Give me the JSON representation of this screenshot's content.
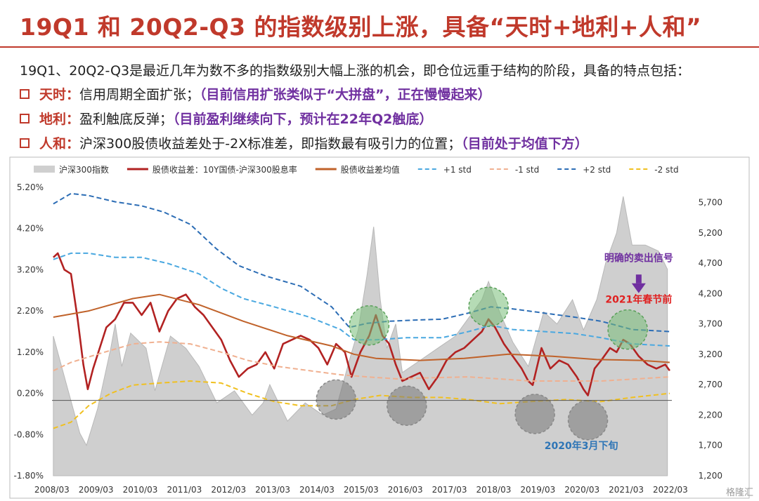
{
  "header": {
    "title": "19Q1 和 20Q2-Q3 的指数级别上涨，具备“天时+地利+人和”",
    "intro": "19Q1、20Q2-Q3是最近几年为数不多的指数级别大幅上涨的机会，即仓位远重于结构的阶段，具备的特点包括："
  },
  "bullets": [
    {
      "key": "天时：",
      "text": "信用周期全面扩张；",
      "note": "（目前信用扩张类似于“大拼盘”，正在慢慢起来）"
    },
    {
      "key": "地利：",
      "text": "盈利触底反弹；",
      "note": "（目前盈利继续向下，预计在22年Q2触底）"
    },
    {
      "key": "人和：",
      "text": "沪深300股债收益差处于-2X标准差，即指数最有吸引力的位置；",
      "note": "（目前处于均值下方）"
    }
  ],
  "chart_data": {
    "type": "line",
    "x_ticks": [
      "2008/03",
      "2009/03",
      "2010/03",
      "2011/03",
      "2012/03",
      "2013/03",
      "2014/03",
      "2015/03",
      "2016/03",
      "2017/03",
      "2018/03",
      "2019/03",
      "2020/03",
      "2021/03",
      "2022/03"
    ],
    "y_left": {
      "ticks": [
        "-1.80%",
        "-0.80%",
        "0.20%",
        "1.20%",
        "2.20%",
        "3.20%",
        "4.20%",
        "5.20%"
      ],
      "range": [
        -1.8,
        5.2
      ]
    },
    "y_right": {
      "ticks": [
        "1,200",
        "1,700",
        "2,200",
        "2,700",
        "3,200",
        "3,700",
        "4,200",
        "4,700",
        "5,200",
        "5,700"
      ],
      "range": [
        1200,
        5950
      ]
    },
    "x_range": [
      2008.17,
      2022.2
    ],
    "legend": {
      "position": "top",
      "items": [
        {
          "label": "沪深300指数",
          "color": "#cfcfcf",
          "style": "area"
        },
        {
          "label": "股债收益差：10Y国债-沪深300股息率",
          "color": "#b22222",
          "style": "solid"
        },
        {
          "label": "股债收益差均值",
          "color": "#c0622a",
          "style": "solid"
        },
        {
          "label": "+1 std",
          "color": "#4aa8e0",
          "style": "dash"
        },
        {
          "label": "-1 std",
          "color": "#f0b090",
          "style": "dash"
        },
        {
          "label": "+2 std",
          "color": "#2c6db5",
          "style": "dash"
        },
        {
          "label": "-2 std",
          "color": "#f0c020",
          "style": "dash"
        }
      ]
    },
    "series": [
      {
        "name": "沪深300指数",
        "axis": "right",
        "points": [
          [
            2008.2,
            3500
          ],
          [
            2008.5,
            2700
          ],
          [
            2008.8,
            1900
          ],
          [
            2008.95,
            1700
          ],
          [
            2009.2,
            2300
          ],
          [
            2009.5,
            3300
          ],
          [
            2009.6,
            3700
          ],
          [
            2009.75,
            3000
          ],
          [
            2009.95,
            3550
          ],
          [
            2010.3,
            3300
          ],
          [
            2010.5,
            2600
          ],
          [
            2010.85,
            3500
          ],
          [
            2011.2,
            3300
          ],
          [
            2011.5,
            3000
          ],
          [
            2011.9,
            2400
          ],
          [
            2012.3,
            2600
          ],
          [
            2012.7,
            2200
          ],
          [
            2012.95,
            2400
          ],
          [
            2013.1,
            2700
          ],
          [
            2013.5,
            2100
          ],
          [
            2013.9,
            2400
          ],
          [
            2014.3,
            2200
          ],
          [
            2014.6,
            2300
          ],
          [
            2014.9,
            3100
          ],
          [
            2015.1,
            3600
          ],
          [
            2015.3,
            4500
          ],
          [
            2015.45,
            5300
          ],
          [
            2015.6,
            4100
          ],
          [
            2015.75,
            3300
          ],
          [
            2015.95,
            3700
          ],
          [
            2016.1,
            2900
          ],
          [
            2016.5,
            3100
          ],
          [
            2016.9,
            3300
          ],
          [
            2017.3,
            3500
          ],
          [
            2017.9,
            4100
          ],
          [
            2018.05,
            4400
          ],
          [
            2018.3,
            3900
          ],
          [
            2018.6,
            3400
          ],
          [
            2018.95,
            3000
          ],
          [
            2019.3,
            3900
          ],
          [
            2019.6,
            3700
          ],
          [
            2019.95,
            4100
          ],
          [
            2020.2,
            3600
          ],
          [
            2020.5,
            4100
          ],
          [
            2020.7,
            4700
          ],
          [
            2020.95,
            5200
          ],
          [
            2021.1,
            5800
          ],
          [
            2021.3,
            5000
          ],
          [
            2021.6,
            5000
          ],
          [
            2021.9,
            4900
          ],
          [
            2022.1,
            4600
          ]
        ]
      },
      {
        "name": "股债收益差：10Y国债-沪深300股息率",
        "axis": "left",
        "points": [
          [
            2008.2,
            3.5
          ],
          [
            2008.3,
            3.6
          ],
          [
            2008.45,
            3.2
          ],
          [
            2008.6,
            3.1
          ],
          [
            2008.75,
            2.0
          ],
          [
            2008.88,
            0.9
          ],
          [
            2008.98,
            0.3
          ],
          [
            2009.1,
            0.8
          ],
          [
            2009.25,
            1.3
          ],
          [
            2009.4,
            1.8
          ],
          [
            2009.6,
            2.0
          ],
          [
            2009.8,
            2.4
          ],
          [
            2010.0,
            2.4
          ],
          [
            2010.2,
            2.1
          ],
          [
            2010.4,
            2.4
          ],
          [
            2010.6,
            1.7
          ],
          [
            2010.8,
            2.2
          ],
          [
            2011.0,
            2.5
          ],
          [
            2011.2,
            2.6
          ],
          [
            2011.4,
            2.3
          ],
          [
            2011.6,
            2.1
          ],
          [
            2011.8,
            1.8
          ],
          [
            2012.0,
            1.5
          ],
          [
            2012.2,
            1.0
          ],
          [
            2012.4,
            0.6
          ],
          [
            2012.6,
            0.8
          ],
          [
            2012.8,
            0.9
          ],
          [
            2013.0,
            1.2
          ],
          [
            2013.2,
            0.8
          ],
          [
            2013.4,
            1.4
          ],
          [
            2013.6,
            1.5
          ],
          [
            2013.8,
            1.6
          ],
          [
            2014.0,
            1.5
          ],
          [
            2014.2,
            1.3
          ],
          [
            2014.4,
            0.9
          ],
          [
            2014.6,
            1.4
          ],
          [
            2014.8,
            1.2
          ],
          [
            2014.95,
            0.6
          ],
          [
            2015.15,
            1.2
          ],
          [
            2015.35,
            1.6
          ],
          [
            2015.5,
            2.1
          ],
          [
            2015.65,
            1.6
          ],
          [
            2015.8,
            1.4
          ],
          [
            2015.95,
            0.9
          ],
          [
            2016.1,
            0.5
          ],
          [
            2016.3,
            0.6
          ],
          [
            2016.5,
            0.7
          ],
          [
            2016.7,
            0.3
          ],
          [
            2016.9,
            0.6
          ],
          [
            2017.1,
            1.0
          ],
          [
            2017.3,
            1.2
          ],
          [
            2017.5,
            1.3
          ],
          [
            2017.7,
            1.5
          ],
          [
            2017.9,
            1.7
          ],
          [
            2018.05,
            2.0
          ],
          [
            2018.2,
            1.8
          ],
          [
            2018.4,
            1.4
          ],
          [
            2018.6,
            1.1
          ],
          [
            2018.8,
            0.8
          ],
          [
            2018.95,
            0.5
          ],
          [
            2019.05,
            0.4
          ],
          [
            2019.25,
            1.3
          ],
          [
            2019.45,
            0.8
          ],
          [
            2019.65,
            1.0
          ],
          [
            2019.85,
            0.9
          ],
          [
            2020.05,
            0.6
          ],
          [
            2020.2,
            0.3
          ],
          [
            2020.3,
            0.15
          ],
          [
            2020.45,
            0.8
          ],
          [
            2020.6,
            1.0
          ],
          [
            2020.8,
            1.3
          ],
          [
            2020.95,
            1.2
          ],
          [
            2021.1,
            1.5
          ],
          [
            2021.25,
            1.4
          ],
          [
            2021.45,
            1.1
          ],
          [
            2021.65,
            0.9
          ],
          [
            2021.85,
            0.8
          ],
          [
            2022.05,
            0.9
          ],
          [
            2022.15,
            0.75
          ]
        ]
      },
      {
        "name": "股债收益差均值",
        "axis": "left",
        "points": [
          [
            2008.2,
            2.05
          ],
          [
            2009.0,
            2.2
          ],
          [
            2010.0,
            2.5
          ],
          [
            2010.6,
            2.6
          ],
          [
            2011.5,
            2.35
          ],
          [
            2012.5,
            1.95
          ],
          [
            2013.5,
            1.6
          ],
          [
            2014.5,
            1.35
          ],
          [
            2015.0,
            1.15
          ],
          [
            2015.5,
            1.05
          ],
          [
            2016.5,
            1.0
          ],
          [
            2017.5,
            1.05
          ],
          [
            2018.5,
            1.15
          ],
          [
            2019.5,
            1.1
          ],
          [
            2020.5,
            1.02
          ],
          [
            2021.5,
            1.0
          ],
          [
            2022.15,
            0.95
          ]
        ]
      },
      {
        "name": "+1 std",
        "axis": "left",
        "points": [
          [
            2008.2,
            3.45
          ],
          [
            2008.6,
            3.6
          ],
          [
            2009.0,
            3.6
          ],
          [
            2009.6,
            3.5
          ],
          [
            2010.2,
            3.5
          ],
          [
            2010.8,
            3.35
          ],
          [
            2011.5,
            3.1
          ],
          [
            2012.0,
            2.75
          ],
          [
            2012.5,
            2.5
          ],
          [
            2013.2,
            2.3
          ],
          [
            2014.0,
            2.05
          ],
          [
            2014.7,
            1.75
          ],
          [
            2015.0,
            1.5
          ],
          [
            2015.5,
            1.5
          ],
          [
            2016.2,
            1.55
          ],
          [
            2017.0,
            1.55
          ],
          [
            2017.6,
            1.7
          ],
          [
            2018.1,
            1.85
          ],
          [
            2018.6,
            1.75
          ],
          [
            2019.3,
            1.7
          ],
          [
            2020.0,
            1.65
          ],
          [
            2020.6,
            1.55
          ],
          [
            2021.3,
            1.4
          ],
          [
            2022.15,
            1.35
          ]
        ]
      },
      {
        "name": "-1 std",
        "axis": "left",
        "points": [
          [
            2008.2,
            0.75
          ],
          [
            2008.6,
            0.95
          ],
          [
            2009.2,
            1.15
          ],
          [
            2010.0,
            1.4
          ],
          [
            2010.6,
            1.45
          ],
          [
            2011.3,
            1.4
          ],
          [
            2012.0,
            1.2
          ],
          [
            2012.6,
            1.0
          ],
          [
            2013.3,
            0.85
          ],
          [
            2014.0,
            0.75
          ],
          [
            2014.7,
            0.65
          ],
          [
            2015.3,
            0.6
          ],
          [
            2016.0,
            0.55
          ],
          [
            2016.8,
            0.58
          ],
          [
            2017.6,
            0.6
          ],
          [
            2018.3,
            0.55
          ],
          [
            2019.0,
            0.5
          ],
          [
            2019.8,
            0.5
          ],
          [
            2020.6,
            0.5
          ],
          [
            2021.4,
            0.55
          ],
          [
            2022.15,
            0.6
          ]
        ]
      },
      {
        "name": "+2 std",
        "axis": "left",
        "points": [
          [
            2008.2,
            4.8
          ],
          [
            2008.6,
            5.05
          ],
          [
            2009.0,
            5.0
          ],
          [
            2009.6,
            4.85
          ],
          [
            2010.2,
            4.75
          ],
          [
            2010.7,
            4.6
          ],
          [
            2011.3,
            4.3
          ],
          [
            2011.9,
            3.7
          ],
          [
            2012.4,
            3.3
          ],
          [
            2013.0,
            3.05
          ],
          [
            2013.8,
            2.8
          ],
          [
            2014.5,
            2.3
          ],
          [
            2014.9,
            1.8
          ],
          [
            2015.3,
            1.9
          ],
          [
            2015.8,
            1.95
          ],
          [
            2016.4,
            1.98
          ],
          [
            2017.0,
            2.0
          ],
          [
            2017.6,
            2.15
          ],
          [
            2018.1,
            2.3
          ],
          [
            2018.6,
            2.25
          ],
          [
            2019.3,
            2.15
          ],
          [
            2020.0,
            2.05
          ],
          [
            2020.6,
            1.95
          ],
          [
            2021.3,
            1.75
          ],
          [
            2022.15,
            1.7
          ]
        ]
      },
      {
        "name": "-2 std",
        "axis": "left",
        "points": [
          [
            2008.2,
            -0.65
          ],
          [
            2008.6,
            -0.5
          ],
          [
            2009.0,
            -0.1
          ],
          [
            2009.5,
            0.2
          ],
          [
            2010.0,
            0.4
          ],
          [
            2010.6,
            0.45
          ],
          [
            2011.3,
            0.5
          ],
          [
            2012.0,
            0.45
          ],
          [
            2012.6,
            0.2
          ],
          [
            2013.2,
            0.0
          ],
          [
            2013.8,
            -0.1
          ],
          [
            2014.5,
            -0.1
          ],
          [
            2015.0,
            0.05
          ],
          [
            2015.6,
            0.15
          ],
          [
            2016.3,
            0.1
          ],
          [
            2017.0,
            0.1
          ],
          [
            2017.6,
            0.05
          ],
          [
            2018.3,
            -0.05
          ],
          [
            2019.0,
            0.0
          ],
          [
            2019.8,
            0.05
          ],
          [
            2020.6,
            0.0
          ],
          [
            2021.3,
            0.1
          ],
          [
            2022.15,
            0.2
          ]
        ]
      }
    ],
    "highlights": [
      {
        "type": "high",
        "x": 2015.35,
        "y": 1.85
      },
      {
        "type": "high",
        "x": 2018.05,
        "y": 2.3
      },
      {
        "type": "high",
        "x": 2021.2,
        "y": 1.75
      },
      {
        "type": "low",
        "x": 2014.6,
        "y": 0.05
      },
      {
        "type": "low",
        "x": 2016.2,
        "y": -0.1
      },
      {
        "type": "low",
        "x": 2019.1,
        "y": -0.3
      },
      {
        "type": "low",
        "x": 2020.3,
        "y": -0.45
      }
    ],
    "annotations": [
      {
        "text": "明确的卖出信号",
        "color": "#7030a0",
        "x": 2021.45,
        "y": 3.4
      },
      {
        "text": "2021年春节前",
        "color": "#e02020",
        "x": 2021.45,
        "y": 2.4
      },
      {
        "text": "2020年3月下旬",
        "color": "#2e75b6",
        "x": 2020.15,
        "y": -1.15
      }
    ],
    "arrow": {
      "x": 2021.45,
      "y_from": 3.05,
      "y_to": 2.7,
      "color": "#7030a0"
    }
  },
  "watermark": "格隆汇"
}
